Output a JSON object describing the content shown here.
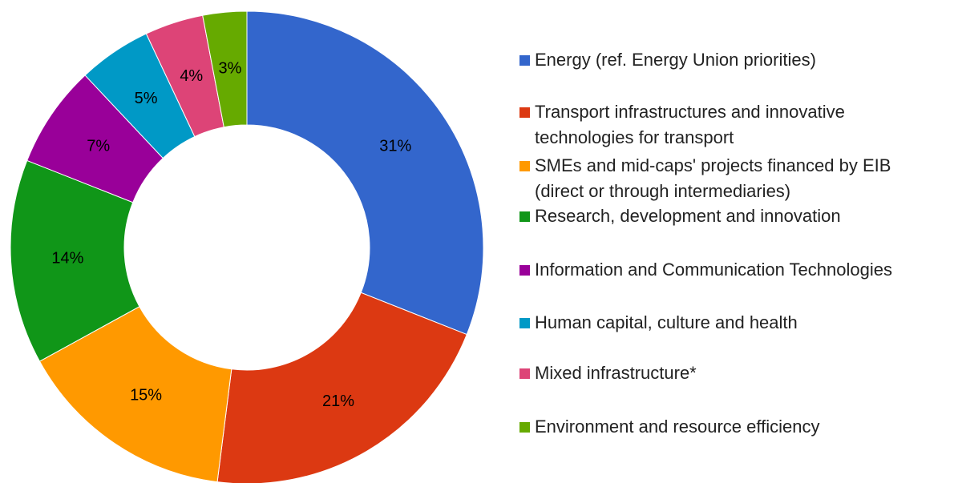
{
  "chart_data": {
    "type": "donut",
    "categories": [
      "Energy (ref. Energy Union priorities)",
      "Transport infrastructures and innovative technologies for transport",
      "SMEs and mid-caps' projects financed by EIB (direct or through intermediaries)",
      "Research, development and innovation",
      "Information and Communication Technologies",
      "Human capital, culture and health",
      "Mixed infrastructure*",
      "Environment and resource efficiency"
    ],
    "values": [
      31,
      21,
      15,
      14,
      7,
      5,
      4,
      3
    ],
    "value_labels": [
      "31%",
      "21%",
      "15%",
      "14%",
      "7%",
      "5%",
      "4%",
      "3%"
    ],
    "colors": [
      "#3366cc",
      "#dc3912",
      "#ff9900",
      "#109618",
      "#990099",
      "#0099c6",
      "#dd4477",
      "#66aa00"
    ],
    "legend": "right"
  }
}
